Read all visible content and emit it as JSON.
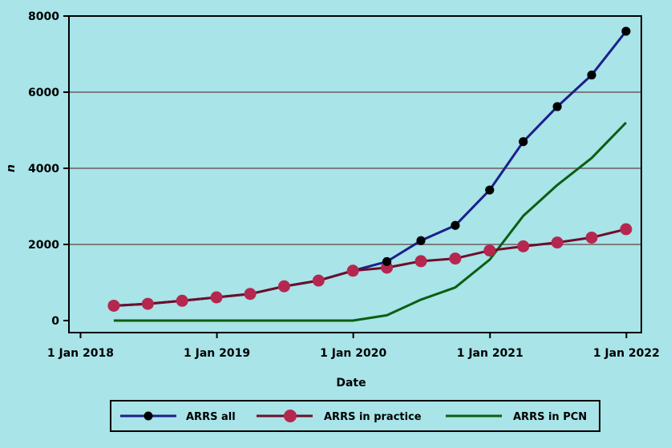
{
  "chart_data": {
    "type": "line",
    "title": "",
    "xlabel": "Date",
    "ylabel": "n",
    "ylim": [
      0,
      8000
    ],
    "xlim": [
      "2017-12-01",
      "2022-02-10"
    ],
    "yticks": [
      0,
      2000,
      4000,
      6000,
      8000
    ],
    "ytick_labels": [
      "0",
      "2000",
      "4000",
      "6000",
      "8000"
    ],
    "xticks": [
      "2018-01-01",
      "2019-01-01",
      "2020-01-01",
      "2021-01-01",
      "2022-01-01"
    ],
    "xtick_labels": [
      "1 Jan 2018",
      "1 Jan 2019",
      "1 Jan 2020",
      "1 Jan 2021",
      "1 Jan 2022"
    ],
    "grid": "horizontal",
    "legend_position": "bottom",
    "x": [
      "2018-03-31",
      "2018-06-30",
      "2018-09-30",
      "2018-12-31",
      "2019-03-31",
      "2019-06-30",
      "2019-09-30",
      "2019-12-31",
      "2020-03-31",
      "2020-06-30",
      "2020-09-30",
      "2020-12-31",
      "2021-03-31",
      "2021-06-30",
      "2021-09-30",
      "2021-12-31"
    ],
    "series": [
      {
        "name": "ARRS all",
        "color": "#1c1f8a",
        "marker": "small-black-dot",
        "values": [
          390,
          440,
          520,
          610,
          700,
          900,
          1050,
          1310,
          1550,
          2100,
          2500,
          3430,
          4700,
          5620,
          6450,
          7600
        ]
      },
      {
        "name": "ARRS in practice",
        "color": "#6e0e2b",
        "marker": "large-crimson-dot",
        "values": [
          390,
          440,
          520,
          610,
          700,
          900,
          1050,
          1310,
          1390,
          1560,
          1630,
          1840,
          1950,
          2050,
          2180,
          2400
        ]
      },
      {
        "name": "ARRS in PCN",
        "color": "#0b5e12",
        "marker": "none",
        "values": [
          0,
          0,
          0,
          0,
          0,
          0,
          0,
          0,
          140,
          550,
          870,
          1600,
          2750,
          3560,
          4270,
          5200
        ]
      }
    ]
  },
  "colors": {
    "background": "#a8e4e8",
    "gridline": "#7d7d7d",
    "axis": "#000000",
    "marker_all": "#000000",
    "marker_practice": "#b5274f"
  }
}
